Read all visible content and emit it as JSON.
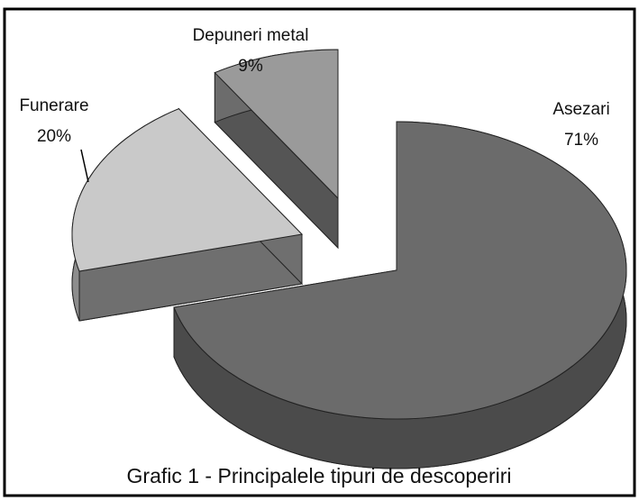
{
  "chart_data": {
    "type": "pie3d",
    "title": "Grafic 1 - Principalele tipuri de descoperiri",
    "categories": [
      "Asezari",
      "Funerare",
      "Depuneri metal"
    ],
    "values": [
      71,
      20,
      9
    ],
    "value_labels": [
      "71%",
      "20%",
      "9%"
    ],
    "colors": [
      "#6b6b6b",
      "#c9c9c9",
      "#9a9a9a"
    ]
  }
}
